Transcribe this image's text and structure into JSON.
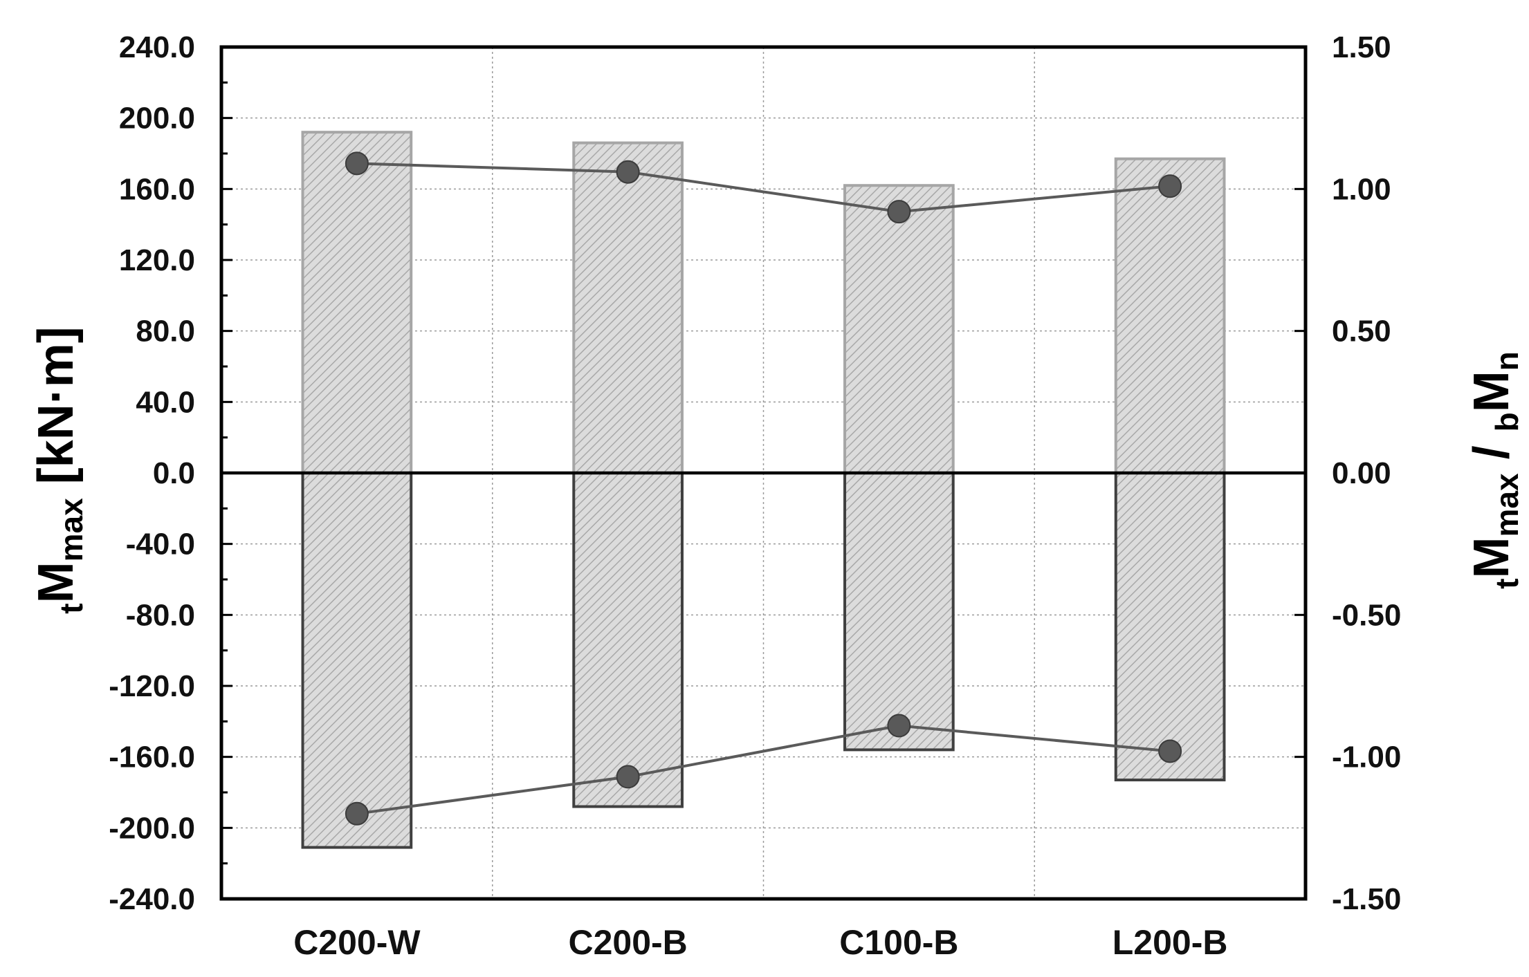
{
  "chart_data": {
    "type": "bar",
    "categories": [
      "C200-W",
      "C200-B",
      "C100-B",
      "L200-B"
    ],
    "series": [
      {
        "axis": "left",
        "kind": "bar",
        "values": [
          192.0,
          186.0,
          162.0,
          177.0
        ]
      },
      {
        "axis": "left",
        "kind": "bar",
        "values": [
          -211.0,
          -188.0,
          -156.0,
          -173.0
        ]
      },
      {
        "axis": "right",
        "kind": "line",
        "values": [
          1.09,
          1.06,
          0.92,
          1.01
        ]
      },
      {
        "axis": "right",
        "kind": "line",
        "values": [
          -1.2,
          -1.07,
          -0.89,
          -0.98
        ]
      }
    ],
    "ylabel": {
      "main": "M",
      "pre_sub": "t",
      "sub": "max",
      "rest": " [kN·m]"
    },
    "y2label": {
      "pre_sub": "t",
      "main": "M",
      "sub": "max",
      "sep": " / ",
      "pre_sub2": "b",
      "main2": "M",
      "sub2": "n"
    },
    "ylim": [
      -240,
      240
    ],
    "y2lim": [
      -1.5,
      1.5
    ],
    "yticks": [
      "240.0",
      "200.0",
      "160.0",
      "120.0",
      "80.0",
      "40.0",
      "0.0",
      "-40.0",
      "-80.0",
      "-120.0",
      "-160.0",
      "-200.0",
      "-240.0"
    ],
    "y2ticks": [
      "1.50",
      "1.00",
      "0.50",
      "0.00",
      "-0.50",
      "-1.00",
      "-1.50"
    ],
    "grid": true,
    "colors": {
      "positive_bar_fill": "#d9d9d9",
      "positive_bar_stroke": "#a6a6a6",
      "negative_bar_fill": "#d9d9d9",
      "negative_bar_stroke": "#404040",
      "line": "#5a5a5a",
      "marker": "#595959",
      "axis": "#000000",
      "grid": "#9a9a9a"
    }
  }
}
